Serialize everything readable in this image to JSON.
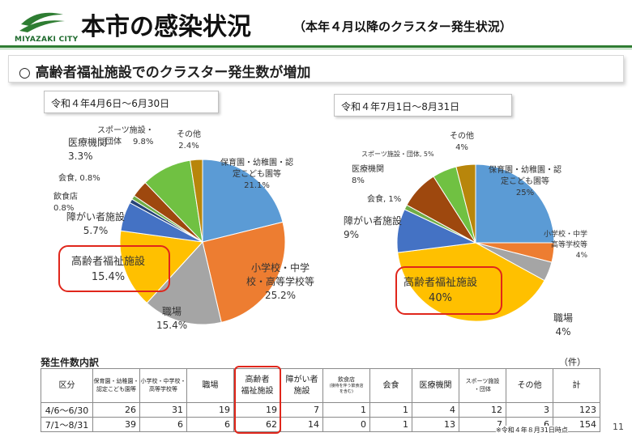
{
  "header": {
    "logo_text": "MIYAZAKI CITY",
    "title": "本市の感染状況",
    "subtitle": "（本年４月以降のクラスター発生状況）"
  },
  "headline": "○ 高齢者福祉施設でのクラスター発生数が増加",
  "colors": {
    "brand_green": "#2e7d32",
    "highlight_red": "#e0261b",
    "hoikuen": "#5b9bd5",
    "school": "#ed7d31",
    "workplace": "#a5a5a5",
    "elderly": "#ffc000",
    "disability": "#4472c4",
    "restaurant": "#264478",
    "dining": "#70ad47",
    "medical": "#9e480e",
    "sports": "#70c142",
    "other": "#b8860b"
  },
  "chart_data": [
    {
      "type": "pie",
      "title": "令和４年4月6日～6月30日",
      "start": "12 o'clock",
      "direction": "clockwise",
      "slices": [
        {
          "key": "hoikuen",
          "label": "保育園・幼稚園・認定こども園等",
          "value": 21.1
        },
        {
          "key": "school",
          "label": "小学校・中学校・高等学校等",
          "value": 25.2
        },
        {
          "key": "workplace",
          "label": "職場",
          "value": 15.4
        },
        {
          "key": "elderly",
          "label": "高齢者福祉施設",
          "value": 15.4
        },
        {
          "key": "disability",
          "label": "障がい者施設",
          "value": 5.7
        },
        {
          "key": "restaurant",
          "label": "飲食店",
          "value": 0.8
        },
        {
          "key": "dining",
          "label": "会食",
          "value": 0.8
        },
        {
          "key": "medical",
          "label": "医療機関",
          "value": 3.3
        },
        {
          "key": "sports",
          "label": "スポーツ施設・団体",
          "value": 9.8
        },
        {
          "key": "other",
          "label": "その他",
          "value": 2.4
        }
      ],
      "labels": {
        "hoikuen": [
          "保育園・幼稚園・認",
          "定こども園等",
          "21.1%"
        ],
        "school": [
          "小学校・中学",
          "校・高等学校等",
          "25.2%"
        ],
        "workplace": [
          "職場",
          "15.4%"
        ],
        "elderly": [
          "高齢者福祉施設",
          "15.4%"
        ],
        "disability": [
          "障がい者施設",
          "5.7%"
        ],
        "restaurant": [
          "飲食店",
          "0.8%"
        ],
        "dining": [
          "会食, 0.8%"
        ],
        "medical": [
          "医療機関",
          "3.3%"
        ],
        "sports": [
          "スポーツ施設・",
          "団体",
          "9.8%"
        ],
        "other": [
          "その他",
          "2.4%"
        ]
      }
    },
    {
      "type": "pie",
      "title": "令和４年7月1日～8月31日",
      "start": "12 o'clock",
      "direction": "clockwise",
      "slices": [
        {
          "key": "hoikuen",
          "label": "保育園・幼稚園・認定こども園等",
          "value": 25
        },
        {
          "key": "school",
          "label": "小学校・中学校・高等学校等",
          "value": 4
        },
        {
          "key": "workplace",
          "label": "職場",
          "value": 4
        },
        {
          "key": "elderly",
          "label": "高齢者福祉施設",
          "value": 40
        },
        {
          "key": "disability",
          "label": "障がい者施設",
          "value": 9
        },
        {
          "key": "restaurant",
          "label": "飲食店",
          "value": 0
        },
        {
          "key": "dining",
          "label": "会食",
          "value": 1
        },
        {
          "key": "medical",
          "label": "医療機関",
          "value": 8
        },
        {
          "key": "sports",
          "label": "スポーツ施設・団体",
          "value": 5
        },
        {
          "key": "other",
          "label": "その他",
          "value": 4
        }
      ],
      "labels": {
        "hoikuen": [
          "保育園・幼稚園・認",
          "定こども園等",
          "25%"
        ],
        "school": [
          "小学校・中学",
          "高等学校等",
          "4%"
        ],
        "workplace": [
          "職場",
          "4%"
        ],
        "elderly": [
          "高齢者福祉施設",
          "40%"
        ],
        "disability": [
          "障がい者施設",
          "9%"
        ],
        "dining": [
          "会食, 1%"
        ],
        "medical": [
          "医療機関",
          "8%"
        ],
        "sports": [
          "スポーツ施設・団体, 5%"
        ],
        "other": [
          "その他",
          "4%"
        ]
      }
    }
  ],
  "table": {
    "title": "発生件数内訳",
    "unit": "（件）",
    "headers": [
      {
        "lines": [
          "区分"
        ]
      },
      {
        "lines": [
          "保育園・幼稚園・",
          "認定こども園等"
        ]
      },
      {
        "lines": [
          "小学校・中学校・",
          "高等学校等"
        ]
      },
      {
        "lines": [
          "職場"
        ]
      },
      {
        "lines": [
          "高齢者",
          "福祉施設"
        ]
      },
      {
        "lines": [
          "障がい者",
          "施設"
        ]
      },
      {
        "lines": [
          "飲食店"
        ],
        "note": [
          "(接待を伴う飲食店",
          "を含む)"
        ]
      },
      {
        "lines": [
          "会食"
        ]
      },
      {
        "lines": [
          "医療機関"
        ]
      },
      {
        "lines": [
          "スポーツ施設",
          "・団体"
        ]
      },
      {
        "lines": [
          "その他"
        ]
      },
      {
        "lines": [
          "計"
        ]
      }
    ],
    "rows": [
      {
        "period": "4/6～6/30",
        "values": [
          "26",
          "31",
          "19",
          "19",
          "7",
          "1",
          "1",
          "4",
          "12",
          "3",
          "123"
        ]
      },
      {
        "period": "7/1～8/31",
        "values": [
          "39",
          "6",
          "6",
          "62",
          "14",
          "0",
          "1",
          "13",
          "7",
          "6",
          "154"
        ]
      }
    ],
    "footnote": "※令和４年８月31日時点"
  },
  "page_number": "11"
}
